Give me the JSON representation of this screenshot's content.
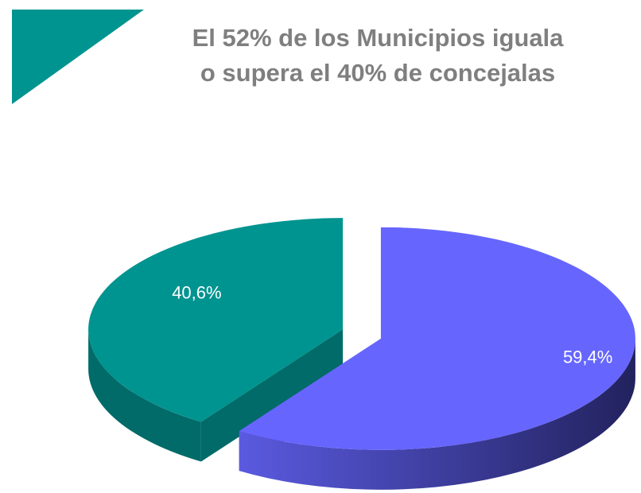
{
  "chart_data": {
    "type": "pie",
    "title": [
      "El 52% de los Municipios  iguala",
      "o supera el 40% de concejalas"
    ],
    "categories": [
      null,
      null
    ],
    "values": [
      59.4,
      40.6
    ],
    "value_labels": [
      "59,4%",
      "40,6%"
    ],
    "colors": [
      "#6666ff",
      "#009490"
    ]
  }
}
